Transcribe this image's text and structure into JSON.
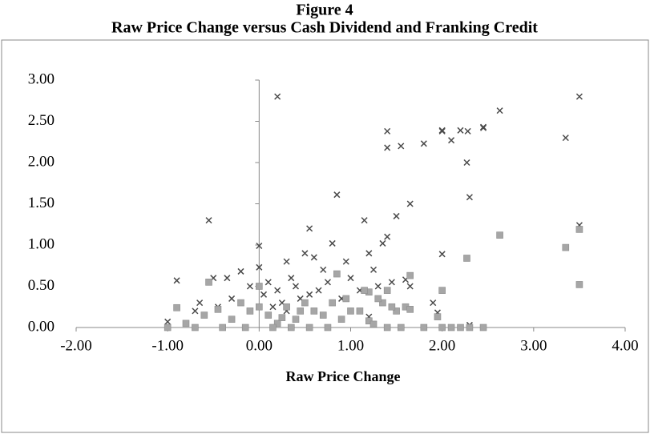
{
  "chart_data": {
    "type": "scatter",
    "title": "Figure 4",
    "subtitle": "Raw Price Change versus Cash Dividend and Franking Credit",
    "x_label": "Raw Price Change",
    "xlim": [
      -2,
      4
    ],
    "ylim": [
      0,
      3
    ],
    "xticks": [
      {
        "value": -2,
        "label": "-2.00"
      },
      {
        "value": -1,
        "label": "-1.00"
      },
      {
        "value": 0,
        "label": "0.00"
      },
      {
        "value": 1,
        "label": "1.00"
      },
      {
        "value": 2,
        "label": "2.00"
      },
      {
        "value": 3,
        "label": "3.00"
      },
      {
        "value": 4,
        "label": "4.00"
      }
    ],
    "yticks": [
      {
        "value": 0,
        "label": "0.00"
      },
      {
        "value": 0.5,
        "label": "0.50"
      },
      {
        "value": 1,
        "label": "1.00"
      },
      {
        "value": 1.5,
        "label": "1.50"
      },
      {
        "value": 2,
        "label": "2.00"
      },
      {
        "value": 2.5,
        "label": "2.50"
      },
      {
        "value": 3,
        "label": "3.00"
      }
    ],
    "series": [
      {
        "marker": "x",
        "color": "#4a4a4a",
        "x": [
          0.2,
          3.5,
          2.63,
          2.45,
          2.45,
          2.0,
          2.0,
          2.2,
          2.28,
          1.4,
          1.4,
          1.55,
          1.8,
          2.1,
          3.35,
          2.27,
          2.3,
          0.85,
          1.65,
          1.5,
          1.15,
          -0.55,
          3.5,
          0.55,
          1.4,
          1.35,
          -0.9,
          -0.5,
          0.0,
          2.0,
          0.8,
          1.2,
          0.95,
          0.6,
          0.3,
          0.5,
          0.0,
          -0.2,
          -0.35,
          -0.1,
          -0.65,
          -0.7,
          -1.0,
          -0.45,
          0.1,
          0.2,
          0.35,
          0.4,
          0.7,
          0.75,
          1.0,
          1.1,
          1.25,
          1.3,
          1.45,
          1.6,
          1.65,
          1.9,
          1.95,
          2.3,
          1.2,
          0.9,
          0.45,
          0.25,
          0.15,
          0.55,
          0.65,
          0.3,
          -0.3,
          0.05
        ],
        "values": [
          2.8,
          2.8,
          2.63,
          2.43,
          2.42,
          2.38,
          2.39,
          2.39,
          2.38,
          2.38,
          2.18,
          2.2,
          2.23,
          2.27,
          2.3,
          2.0,
          1.58,
          1.61,
          1.5,
          1.35,
          1.3,
          1.3,
          1.24,
          1.2,
          1.1,
          1.02,
          0.57,
          0.6,
          0.99,
          0.89,
          1.02,
          0.9,
          0.8,
          0.85,
          0.8,
          0.9,
          0.73,
          0.68,
          0.6,
          0.5,
          0.3,
          0.2,
          0.07,
          0.25,
          0.55,
          0.45,
          0.6,
          0.5,
          0.7,
          0.55,
          0.6,
          0.45,
          0.7,
          0.5,
          0.55,
          0.58,
          0.5,
          0.3,
          0.18,
          0.03,
          0.13,
          0.35,
          0.35,
          0.3,
          0.25,
          0.4,
          0.45,
          0.2,
          0.35,
          0.4
        ]
      },
      {
        "marker": "square",
        "color": "#a6a6a6",
        "x": [
          3.5,
          2.63,
          3.35,
          2.27,
          3.5,
          1.65,
          2.0,
          1.6,
          1.65,
          1.5,
          1.45,
          1.4,
          1.35,
          1.3,
          1.2,
          1.15,
          1.1,
          1.2,
          1.25,
          1.4,
          1.55,
          1.8,
          2.0,
          2.1,
          2.2,
          2.3,
          2.45,
          1.95,
          -0.55,
          -0.9,
          -1.0,
          -0.8,
          -0.7,
          -0.6,
          -0.45,
          -0.4,
          -0.3,
          -0.2,
          -0.1,
          0.0,
          0.0,
          0.1,
          0.2,
          0.3,
          0.4,
          0.5,
          0.6,
          0.7,
          0.8,
          0.85,
          0.9,
          0.95,
          1.0,
          0.15,
          0.35,
          0.55,
          0.75,
          -0.15,
          0.25,
          0.45
        ],
        "values": [
          1.19,
          1.12,
          0.97,
          0.84,
          0.52,
          0.63,
          0.45,
          0.25,
          0.22,
          0.2,
          0.25,
          0.45,
          0.3,
          0.35,
          0.43,
          0.45,
          0.2,
          0.08,
          0.04,
          0,
          0,
          0,
          0,
          0,
          0,
          0,
          0,
          0.13,
          0.55,
          0.24,
          0,
          0.05,
          0,
          0.15,
          0.22,
          0,
          0.1,
          0.3,
          0.2,
          0.5,
          0.25,
          0.15,
          0.05,
          0.25,
          0.1,
          0.3,
          0.2,
          0.15,
          0.3,
          0.65,
          0.1,
          0.35,
          0.2,
          0,
          0,
          0,
          0,
          0,
          0.12,
          0.2
        ]
      }
    ]
  }
}
